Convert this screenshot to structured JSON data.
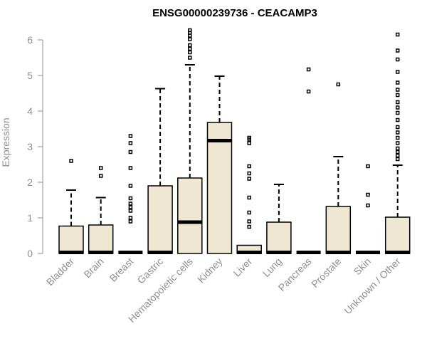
{
  "colors": {
    "box_fill": "#EEE8D2",
    "stroke": "#000000",
    "axis": "#909090",
    "label": "#909090"
  },
  "chart_data": {
    "type": "boxplot",
    "title": "ENSG00000239736 - CEACAMP3",
    "xlabel": "",
    "ylabel": "Expression",
    "ylim": [
      0,
      6.2
    ],
    "yticks": [
      0,
      1,
      2,
      3,
      4,
      5,
      6
    ],
    "categories": [
      "Bladder",
      "Brain",
      "Breast",
      "Gastric",
      "Hematopoietic cells",
      "Kidney",
      "Liver",
      "Lung",
      "Pancreas",
      "Prostate",
      "Skin",
      "Unknown / Other"
    ],
    "boxes": [
      {
        "q1": 0,
        "median": 0,
        "q3": 0.77,
        "whisker_low": 0,
        "whisker_high": 1.78,
        "outliers": [
          2.6
        ]
      },
      {
        "q1": 0,
        "median": 0,
        "q3": 0.8,
        "whisker_low": 0,
        "whisker_high": 1.57,
        "outliers": [
          2.18,
          2.4
        ]
      },
      {
        "q1": 0,
        "median": 0,
        "q3": 0,
        "whisker_low": 0,
        "whisker_high": 0,
        "outliers": [
          0.9,
          1.0,
          1.2,
          1.3,
          1.4,
          1.55,
          1.9,
          2.4,
          2.85,
          3.1,
          3.3
        ]
      },
      {
        "q1": 0,
        "median": 0,
        "q3": 1.9,
        "whisker_low": 0,
        "whisker_high": 4.63,
        "outliers": []
      },
      {
        "q1": 0,
        "median": 0.88,
        "q3": 2.12,
        "whisker_low": 0,
        "whisker_high": 5.3,
        "outliers": [
          5.5,
          5.65,
          5.75,
          5.85,
          6.02,
          6.12,
          6.2,
          6.27
        ]
      },
      {
        "q1": 0,
        "median": 3.17,
        "q3": 3.68,
        "whisker_low": 0,
        "whisker_high": 4.98,
        "outliers": []
      },
      {
        "q1": 0,
        "median": 0,
        "q3": 0.23,
        "whisker_low": 0,
        "whisker_high": 0.23,
        "outliers": [
          0.75,
          0.9,
          1.15,
          1.57,
          2.1,
          2.25,
          2.45,
          3.1,
          3.2,
          3.25
        ]
      },
      {
        "q1": 0,
        "median": 0,
        "q3": 0.88,
        "whisker_low": 0,
        "whisker_high": 1.94,
        "outliers": []
      },
      {
        "q1": 0,
        "median": 0,
        "q3": 0,
        "whisker_low": 0,
        "whisker_high": 0,
        "outliers": [
          4.55,
          5.17
        ]
      },
      {
        "q1": 0,
        "median": 0,
        "q3": 1.32,
        "whisker_low": 0,
        "whisker_high": 2.72,
        "outliers": [
          4.75
        ]
      },
      {
        "q1": 0,
        "median": 0,
        "q3": 0,
        "whisker_low": 0,
        "whisker_high": 0,
        "outliers": [
          1.35,
          1.65,
          2.45
        ]
      },
      {
        "q1": 0,
        "median": 0,
        "q3": 1.02,
        "whisker_low": 0,
        "whisker_high": 2.48,
        "outliers": [
          2.65,
          2.75,
          2.85,
          2.95,
          3.1,
          3.25,
          3.4,
          3.55,
          3.75,
          3.95,
          4.1,
          4.25,
          4.45,
          4.6,
          4.8,
          5.1,
          5.45,
          5.7,
          6.15
        ]
      }
    ]
  }
}
